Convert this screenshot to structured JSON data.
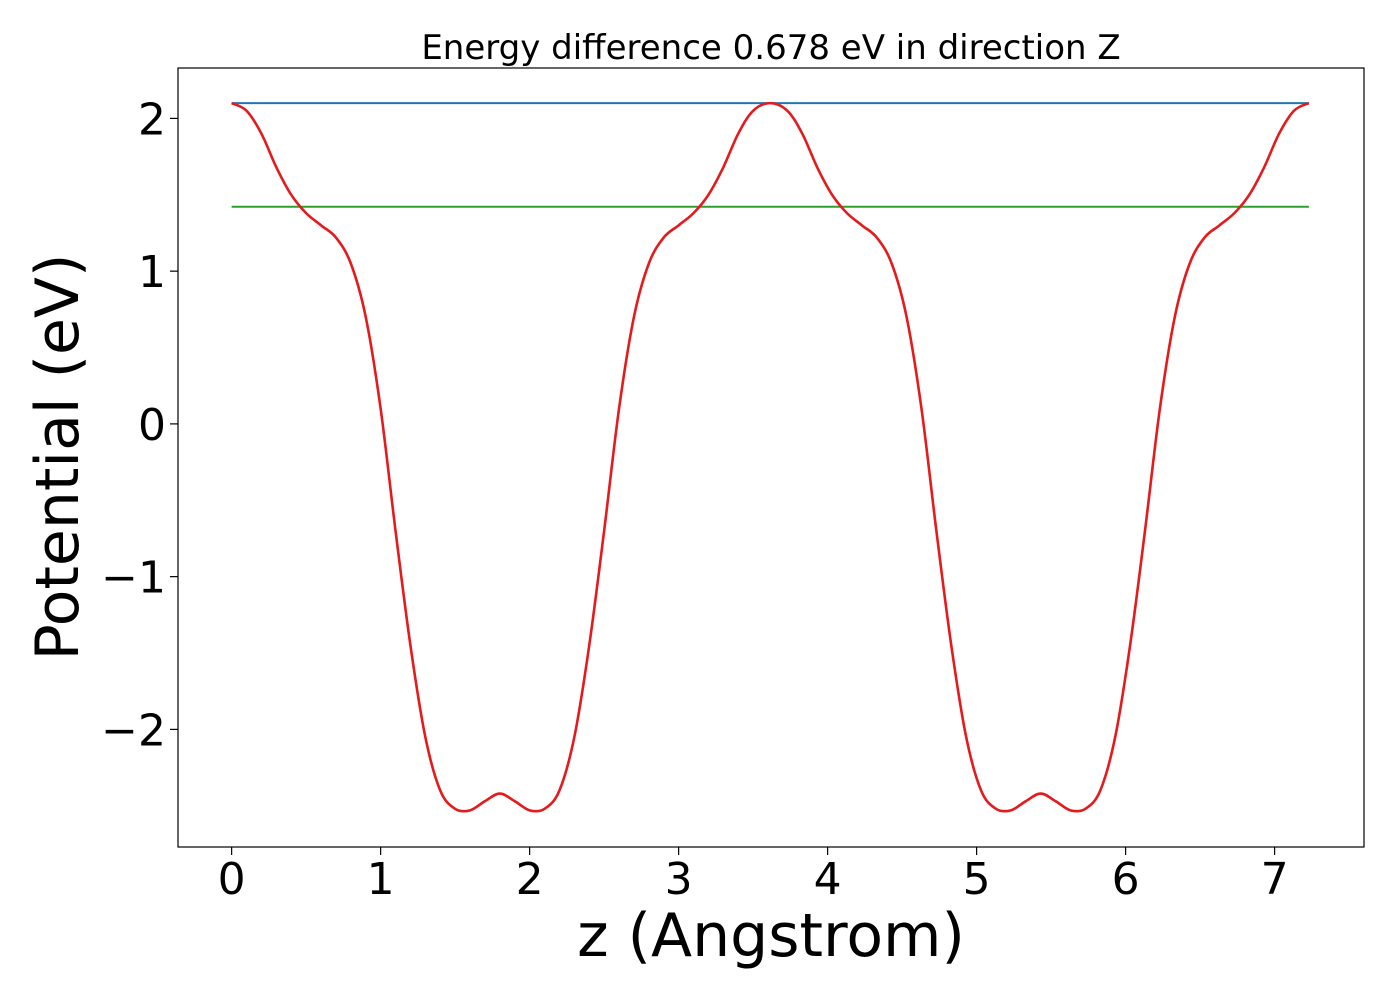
{
  "chart_data": {
    "type": "line",
    "title": "Energy difference 0.678 eV in direction Z",
    "xlabel": "z (Angstrom)",
    "ylabel": "Potential (eV)",
    "xlim": [
      -0.36,
      7.6
    ],
    "ylim": [
      -2.77,
      2.33
    ],
    "x_ticks": [
      0,
      1,
      2,
      3,
      4,
      5,
      6,
      7
    ],
    "x_tick_labels": [
      "0",
      "1",
      "2",
      "3",
      "4",
      "5",
      "6",
      "7"
    ],
    "y_ticks": [
      -2,
      -1,
      0,
      1,
      2
    ],
    "y_tick_labels": [
      "−2",
      "−1",
      "0",
      "1",
      "2"
    ],
    "grid": false,
    "legend": "none",
    "series": [
      {
        "color": "#1f77b4",
        "x": [
          0,
          7.23
        ],
        "y": [
          2.1,
          2.1
        ]
      },
      {
        "color": "#2ca02c",
        "x": [
          0,
          7.23
        ],
        "y": [
          1.422,
          1.422
        ]
      },
      {
        "color": "#e41a1c",
        "x": [
          0,
          0.1,
          0.2,
          0.3,
          0.4,
          0.5,
          0.6,
          0.7,
          0.8,
          0.9,
          1.0,
          1.1,
          1.2,
          1.3,
          1.4,
          1.5,
          1.6,
          1.7,
          1.8,
          1.9,
          2.0,
          2.1,
          2.2,
          2.3,
          2.4,
          2.5,
          2.6,
          2.7,
          2.8,
          2.9,
          3.0,
          3.1,
          3.2,
          3.3,
          3.4,
          3.5,
          3.615,
          3.73,
          3.83,
          3.93,
          4.03,
          4.13,
          4.23,
          4.33,
          4.43,
          4.53,
          4.63,
          4.73,
          4.83,
          4.93,
          5.03,
          5.13,
          5.23,
          5.33,
          5.43,
          5.53,
          5.63,
          5.73,
          5.83,
          5.93,
          6.03,
          6.13,
          6.23,
          6.33,
          6.43,
          6.53,
          6.63,
          6.73,
          6.83,
          6.93,
          7.03,
          7.13,
          7.23
        ],
        "y": [
          2.1,
          2.05,
          1.9,
          1.68,
          1.5,
          1.38,
          1.3,
          1.22,
          1.05,
          0.7,
          0.1,
          -0.7,
          -1.45,
          -2.05,
          -2.4,
          -2.52,
          -2.53,
          -2.47,
          -2.42,
          -2.47,
          -2.53,
          -2.52,
          -2.4,
          -2.05,
          -1.45,
          -0.7,
          0.1,
          0.7,
          1.05,
          1.22,
          1.3,
          1.38,
          1.5,
          1.68,
          1.9,
          2.05,
          2.1,
          2.05,
          1.9,
          1.68,
          1.5,
          1.38,
          1.3,
          1.22,
          1.05,
          0.7,
          0.1,
          -0.7,
          -1.45,
          -2.05,
          -2.4,
          -2.52,
          -2.53,
          -2.47,
          -2.42,
          -2.47,
          -2.53,
          -2.52,
          -2.4,
          -2.05,
          -1.45,
          -0.7,
          0.1,
          0.7,
          1.05,
          1.22,
          1.3,
          1.38,
          1.5,
          1.68,
          1.9,
          2.05,
          2.1
        ]
      }
    ]
  }
}
